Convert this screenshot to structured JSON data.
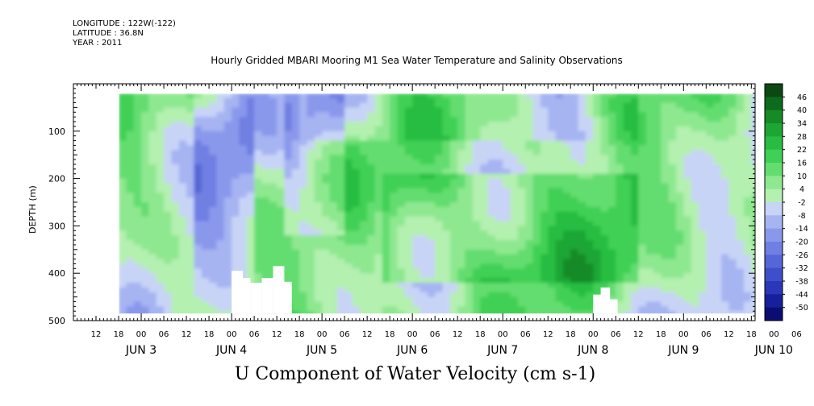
{
  "header": {
    "longitude": "LONGITUDE : 122W(-122)",
    "latitude": "LATITUDE : 36.8N",
    "year": "YEAR : 2011"
  },
  "chart_data": {
    "type": "heatmap",
    "title": "Hourly Gridded MBARI Mooring M1 Sea Water Temperature and Salinity Observations",
    "variable": "U Component of Water Velocity (cm s-1)",
    "ylabel": "DEPTH (m)",
    "xlabel": "",
    "ylim": [
      500,
      0
    ],
    "y_ticks": [
      100,
      200,
      300,
      400,
      500
    ],
    "x_range_hours": {
      "start": "JUN 3 06",
      "end": "JUN 10 12"
    },
    "x_hour_labels": [
      "12",
      "18",
      "00",
      "06",
      "12",
      "18",
      "00",
      "06",
      "12",
      "18",
      "00",
      "06",
      "12",
      "18",
      "00",
      "06",
      "12",
      "18",
      "00",
      "06",
      "12",
      "18",
      "00",
      "06",
      "12",
      "18",
      "00",
      "06",
      "12",
      "18",
      "00",
      "06"
    ],
    "x_day_labels": [
      "JUN  3",
      "JUN  4",
      "JUN  5",
      "JUN  6",
      "JUN  7",
      "JUN  8",
      "JUN  9",
      "JUN 10"
    ],
    "colorbar_labels": [
      "46",
      "40",
      "34",
      "28",
      "22",
      "16",
      "10",
      "4",
      "-2",
      "-8",
      "-14",
      "-20",
      "-26",
      "-32",
      "-38",
      "-44",
      "-50"
    ],
    "colorbar_colors": [
      "#0a4a12",
      "#0e6a1c",
      "#158a26",
      "#1da634",
      "#28bd42",
      "#3fd055",
      "#63dd70",
      "#8ee890",
      "#b4f0b0",
      "#c8d4f6",
      "#a6b4f2",
      "#8a98ec",
      "#6f7fe2",
      "#5566d6",
      "#3f4fca",
      "#2a37b8",
      "#16209a",
      "#0a0e72"
    ],
    "depth_profile_rows_m": [
      25,
      75,
      125,
      175,
      225,
      275,
      325,
      375,
      425,
      475
    ],
    "structure": {
      "data_start": "JUN 3 18",
      "data_end": "JUN 10 12",
      "data_depth_range_m": [
        20,
        485
      ]
    }
  },
  "series": [
    {
      "name": "",
      "values": []
    }
  ]
}
